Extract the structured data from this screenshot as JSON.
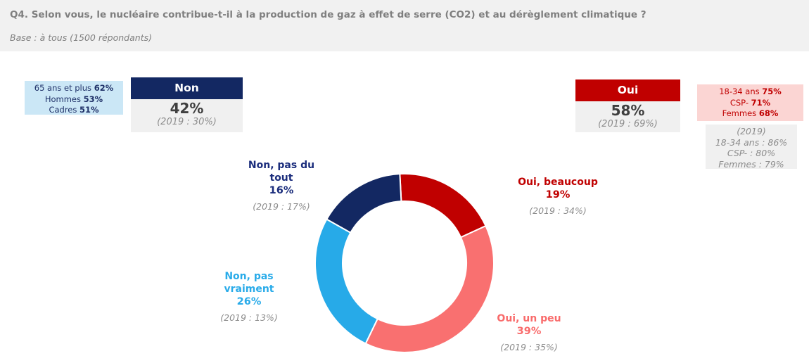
{
  "header": {
    "title": "Q4. Selon vous, le nucléaire contribue-t-il à la production de gaz à effet de serre (CO2) et au dérèglement climatique ?",
    "base": "Base : à tous (1500 répondants)"
  },
  "summary": {
    "non": {
      "label": "Non",
      "value": "42%",
      "prev": "(2019 : 30%)",
      "highlights": [
        {
          "label": "65 ans et plus",
          "value": "62%"
        },
        {
          "label": "Hommes",
          "value": "53%"
        },
        {
          "label": "Cadres",
          "value": "51%"
        }
      ]
    },
    "oui": {
      "label": "Oui",
      "value": "58%",
      "prev": "(2019 : 69%)",
      "highlights": [
        {
          "label": "18-34 ans",
          "value": "75%"
        },
        {
          "label": "CSP-",
          "value": "71%"
        },
        {
          "label": "Femmes",
          "value": "68%"
        }
      ],
      "prev_highlights": {
        "title": "(2019)",
        "lines": [
          "18-34 ans : 86%",
          "CSP- : 80%",
          "Femmes : 79%"
        ]
      }
    }
  },
  "chart_data": {
    "type": "pie",
    "subtype": "donut",
    "start_angle_deg": -3,
    "direction": "clockwise",
    "unit": "%",
    "segments": [
      {
        "label": "Oui, beaucoup",
        "value": 19,
        "prev_value": 34,
        "prev_label": "(2019 : 34%)",
        "color": "#c00000",
        "text_color": "#c00000"
      },
      {
        "label": "Oui, un peu",
        "value": 39,
        "prev_value": 35,
        "prev_label": "(2019 : 35%)",
        "color": "#f97070",
        "text_color": "#f96b6b"
      },
      {
        "label": "Non, pas vraiment",
        "value": 26,
        "prev_value": 13,
        "prev_label": "(2019 : 13%)",
        "color": "#27aae8",
        "text_color": "#29abe9"
      },
      {
        "label": "Non, pas du tout",
        "value": 16,
        "prev_value": 17,
        "prev_label": "(2019 : 17%)",
        "color": "#132862",
        "text_color": "#1b2d7c"
      }
    ],
    "totals": {
      "oui": 58,
      "non": 42,
      "oui_2019": 69,
      "non_2019": 30
    }
  },
  "colors": {
    "navy": "#132862",
    "red": "#c00000",
    "salmon": "#f97070",
    "cyan": "#27aae8",
    "light_blue_bg": "#cbe7f6",
    "pink_bg": "#fbd5d3",
    "gray_bg": "#f0f0f0",
    "header_band_bg": "#f1f1f1",
    "title_gray": "#7f7f7f",
    "prev_gray": "#8c8c8c"
  }
}
